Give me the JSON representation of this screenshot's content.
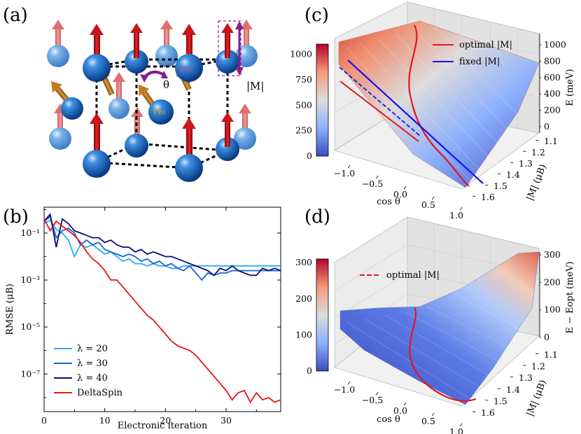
{
  "panel_labels": {
    "a": "(a)",
    "b": "(b)",
    "c": "(c)",
    "d": "(d)"
  },
  "panel_a": {
    "theta_label": "θ",
    "moment_label": "|M|",
    "fe1_label": "Fe₁",
    "fe2_label": "Fe₂",
    "colors": {
      "atom": "#1f5fb0",
      "spin": "#c8141b",
      "tilted_spin": "#c87a1a",
      "rotation": "#8a1b8a"
    }
  },
  "chart_data": [
    {
      "id": "b",
      "type": "line",
      "xlabel": "Electronic iteration",
      "ylabel": "RMSE (μB)",
      "yscale": "log",
      "xlim": [
        0,
        39
      ],
      "ylim_exp": [
        -8.6,
        0.1
      ],
      "xticks": [
        "0",
        "10",
        "20",
        "30"
      ],
      "xtick_values": [
        0,
        10,
        20,
        30
      ],
      "yticks": [
        "10⁻¹",
        "10⁻³",
        "10⁻⁵",
        "10⁻⁷"
      ],
      "ytick_exps": [
        -1,
        -3,
        -5,
        -7
      ],
      "legend": [
        "λ = 20",
        "λ = 30",
        "λ = 40",
        "DeltaSpin"
      ],
      "series": [
        {
          "name": "λ = 20",
          "color": "#29aef0",
          "x": [
            0,
            1,
            2,
            3,
            4,
            5,
            6,
            7,
            8,
            9,
            10,
            11,
            12,
            13,
            14,
            15,
            16,
            17,
            18,
            19,
            20,
            21,
            22,
            23,
            24,
            25,
            26,
            27,
            28,
            29,
            30,
            31,
            32,
            33,
            34,
            35,
            36,
            37,
            38,
            39
          ],
          "log10y": [
            -0.6,
            -0.45,
            -0.85,
            -1.0,
            -1.3,
            -2.0,
            -1.5,
            -1.6,
            -1.5,
            -1.7,
            -1.9,
            -1.8,
            -2.0,
            -2.2,
            -2.1,
            -2.3,
            -2.3,
            -2.4,
            -2.3,
            -2.4,
            -2.4,
            -2.5,
            -2.5,
            -2.4,
            -2.4,
            -2.4,
            -2.4,
            -2.4,
            -2.4,
            -2.4,
            -2.4,
            -2.4,
            -2.4,
            -2.4,
            -2.4,
            -2.4,
            -2.4,
            -2.4,
            -2.4,
            -2.4
          ]
        },
        {
          "name": "λ = 30",
          "color": "#1466d8",
          "x": [
            0,
            1,
            2,
            3,
            4,
            5,
            6,
            7,
            8,
            9,
            10,
            11,
            12,
            13,
            14,
            15,
            16,
            17,
            18,
            19,
            20,
            21,
            22,
            23,
            24,
            25,
            26,
            27,
            28,
            29,
            30,
            31,
            32,
            33,
            34,
            35,
            36,
            37,
            38,
            39
          ],
          "log10y": [
            -0.5,
            -0.3,
            -1.2,
            -0.9,
            -0.8,
            -1.0,
            -1.5,
            -1.3,
            -1.5,
            -1.4,
            -1.7,
            -1.8,
            -1.9,
            -2.0,
            -1.9,
            -2.0,
            -2.2,
            -2.1,
            -2.3,
            -2.2,
            -2.4,
            -2.3,
            -2.5,
            -2.6,
            -2.4,
            -2.7,
            -3.0,
            -2.7,
            -2.8,
            -2.7,
            -2.7,
            -2.6,
            -2.6,
            -2.6,
            -2.6,
            -2.6,
            -2.6,
            -2.6,
            -2.6,
            -2.6
          ]
        },
        {
          "name": "λ = 40",
          "color": "#0a0f7a",
          "x": [
            0,
            1,
            2,
            3,
            4,
            5,
            6,
            7,
            8,
            9,
            10,
            11,
            12,
            13,
            14,
            15,
            16,
            17,
            18,
            19,
            20,
            21,
            22,
            23,
            24,
            25,
            26,
            27,
            28,
            29,
            30,
            31,
            32,
            33,
            34,
            35,
            36,
            37,
            38,
            39
          ],
          "log10y": [
            -0.5,
            -0.2,
            -1.6,
            -0.4,
            -0.6,
            -0.9,
            -1.0,
            -1.1,
            -1.2,
            -1.2,
            -1.4,
            -1.3,
            -1.5,
            -1.6,
            -1.6,
            -1.8,
            -1.7,
            -1.9,
            -1.8,
            -1.9,
            -2.0,
            -2.0,
            -2.1,
            -2.2,
            -2.3,
            -2.4,
            -2.5,
            -2.6,
            -2.8,
            -2.5,
            -2.6,
            -2.4,
            -2.6,
            -2.7,
            -2.8,
            -2.8,
            -2.5,
            -2.6,
            -2.5,
            -2.6
          ]
        },
        {
          "name": "DeltaSpin",
          "color": "#e8141a",
          "x": [
            0,
            1,
            2,
            3,
            4,
            5,
            6,
            7,
            8,
            9,
            10,
            11,
            12,
            13,
            14,
            15,
            16,
            17,
            18,
            19,
            20,
            21,
            22,
            23,
            24,
            25,
            26,
            27,
            28,
            29,
            30,
            31,
            32,
            33,
            34,
            35,
            36,
            37,
            38,
            39
          ],
          "log10y": [
            -0.4,
            -0.9,
            -0.5,
            -0.7,
            -0.9,
            -1.1,
            -1.4,
            -1.8,
            -2.1,
            -2.3,
            -2.6,
            -3.0,
            -3.0,
            -3.3,
            -3.6,
            -3.9,
            -4.2,
            -4.5,
            -4.7,
            -5.0,
            -5.3,
            -5.6,
            -5.8,
            -5.9,
            -6.0,
            -6.2,
            -6.5,
            -6.8,
            -7.1,
            -7.4,
            -7.7,
            -8.1,
            -7.8,
            -7.7,
            -8.2,
            -7.8,
            -8.1,
            -8.0,
            -8.2,
            -8.1
          ]
        }
      ]
    },
    {
      "id": "c",
      "type": "surface3d",
      "xlabel": "cos θ",
      "ylabel": "|M| (μB)",
      "zlabel": "E (meV)",
      "xlim": [
        -1.0,
        1.0
      ],
      "ylim": [
        1.1,
        1.6
      ],
      "zlim": [
        0,
        1050
      ],
      "xticks": [
        "−1.0",
        "−0.5",
        "0.0",
        "0.5",
        "1.0"
      ],
      "yticks": [
        "1.1",
        "1.2",
        "1.3",
        "1.4",
        "1.5",
        "1.6"
      ],
      "zticks": [
        "0",
        "200",
        "400",
        "600",
        "800",
        "1000"
      ],
      "colorbar_ticks": [
        "0",
        "250",
        "500",
        "750",
        "1000"
      ],
      "colorbar_range": [
        0,
        1100
      ],
      "legend": [
        "optimal |M|",
        "fixed |M|"
      ],
      "series": [
        {
          "name": "optimal |M|",
          "color": "#e8141a",
          "cos_theta": [
            -1.0,
            -0.6,
            -0.2,
            0.2,
            0.5,
            0.8,
            1.0
          ],
          "M": [
            1.52,
            1.48,
            1.42,
            1.33,
            1.25,
            1.18,
            1.12
          ]
        },
        {
          "name": "fixed |M|",
          "color": "#1414e8",
          "cos_theta": [
            -1.0,
            -0.5,
            0.0,
            0.5,
            1.0
          ],
          "M": [
            1.25,
            1.25,
            1.25,
            1.25,
            1.25
          ]
        }
      ]
    },
    {
      "id": "d",
      "type": "surface3d",
      "xlabel": "cos θ",
      "ylabel": "|M| (μB)",
      "zlabel": "E − Eopt (meV)",
      "xlim": [
        -1.0,
        1.0
      ],
      "ylim": [
        1.1,
        1.6
      ],
      "zlim": [
        0,
        310
      ],
      "xticks": [
        "−1.0",
        "−0.5",
        "0.0",
        "0.5",
        "1.0"
      ],
      "yticks": [
        "1.1",
        "1.2",
        "1.3",
        "1.4",
        "1.5",
        "1.6"
      ],
      "zticks": [
        "0",
        "100",
        "200",
        "300"
      ],
      "colorbar_ticks": [
        "0",
        "100",
        "200",
        "300"
      ],
      "colorbar_range": [
        0,
        310
      ],
      "legend": [
        "optimal |M|"
      ],
      "series": [
        {
          "name": "optimal |M|",
          "color": "#e8141a",
          "style": "dashed",
          "cos_theta": [
            -1.0,
            -0.6,
            -0.2,
            0.2,
            0.5,
            0.8,
            1.0
          ],
          "M": [
            1.52,
            1.48,
            1.42,
            1.33,
            1.25,
            1.18,
            1.12
          ]
        }
      ]
    }
  ]
}
